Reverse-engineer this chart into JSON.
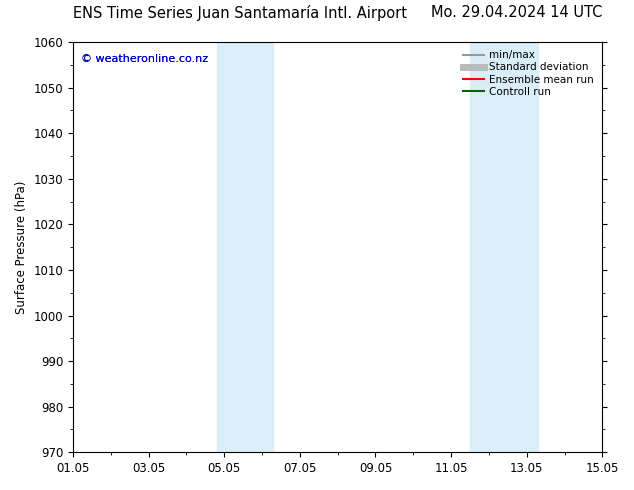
{
  "title_left": "ENS Time Series Juan Santamaría Intl. Airport",
  "title_right": "Mo. 29.04.2024 14 UTC",
  "ylabel": "Surface Pressure (hPa)",
  "ylim": [
    970,
    1060
  ],
  "yticks": [
    970,
    980,
    990,
    1000,
    1010,
    1020,
    1030,
    1040,
    1050,
    1060
  ],
  "xlim": [
    0,
    14
  ],
  "xtick_positions": [
    0,
    2,
    4,
    6,
    8,
    10,
    12,
    14
  ],
  "xtick_labels": [
    "01.05",
    "03.05",
    "05.05",
    "07.05",
    "09.05",
    "11.05",
    "13.05",
    "15.05"
  ],
  "shade_bands": [
    {
      "xmin": 3.8,
      "xmax": 5.3
    },
    {
      "xmin": 10.5,
      "xmax": 12.3
    }
  ],
  "shade_color": "#daeef8",
  "copyright_text": "© weatheronline.co.nz",
  "copyright_color": "#0000cc",
  "background_color": "#ffffff",
  "plot_bg_color": "#ffffff",
  "legend_items": [
    {
      "label": "min/max",
      "color": "#999999",
      "lw": 1.5
    },
    {
      "label": "Standard deviation",
      "color": "#bbbbbb",
      "lw": 5
    },
    {
      "label": "Ensemble mean run",
      "color": "#ff0000",
      "lw": 1.5
    },
    {
      "label": "Controll run",
      "color": "#006600",
      "lw": 1.5
    }
  ],
  "title_fontsize": 10.5,
  "tick_fontsize": 8.5,
  "ylabel_fontsize": 8.5,
  "figsize": [
    6.34,
    4.9
  ],
  "dpi": 100
}
